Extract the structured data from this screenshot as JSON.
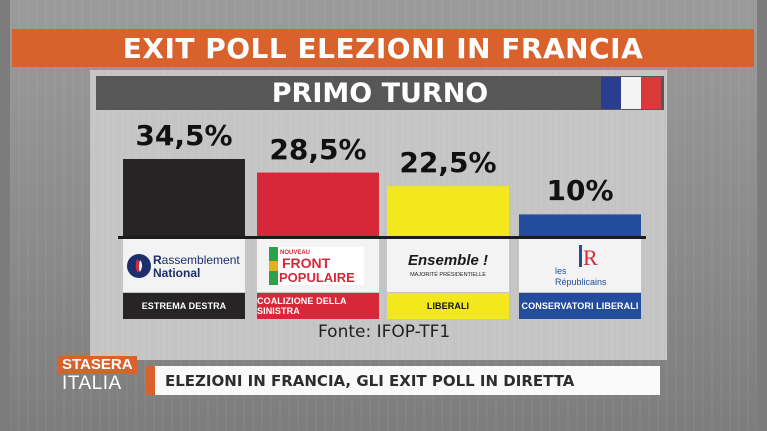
{
  "header": {
    "title": "EXIT POLL ELEZIONI IN FRANCIA",
    "subtitle": "PRIMO TURNO",
    "flag_colors": [
      "#2a3d8f",
      "#f4f4f4",
      "#d83a3a"
    ]
  },
  "chart_data": {
    "type": "bar",
    "categories": [
      "ESTREMA DESTRA",
      "COALIZIONE DELLA SINISTRA",
      "LIBERALI",
      "CONSERVATORI LIBERALI"
    ],
    "values": [
      34.5,
      28.5,
      22.5,
      10
    ],
    "value_labels": [
      "34,5%",
      "28,5%",
      "22,5%",
      "10%"
    ],
    "colors": [
      "#262424",
      "#d7283a",
      "#f2e81c",
      "#234d9c"
    ],
    "category_text_colors": [
      "#ffffff",
      "#ffffff",
      "#111111",
      "#ffffff"
    ],
    "ylim": [
      0,
      40
    ],
    "grid": false
  },
  "logos": {
    "rn": {
      "line1": "assemblement",
      "initial": "R",
      "line2": "National"
    },
    "fp": {
      "small": "NOUVEAU",
      "line1": "FRONT",
      "line2": "POPULAIRE"
    },
    "ens": {
      "line1": "Ensemble !",
      "line2": "MAJORITÉ PRÉSIDENTIELLE"
    },
    "lr": {
      "mark": "R",
      "line1": "les",
      "line2": "Républicains"
    }
  },
  "source": "Fonte: IFOP-TF1",
  "show": {
    "line1": "STASERA",
    "line2": "ITALIA"
  },
  "ticker": "ELEZIONI IN FRANCIA, GLI EXIT POLL IN DIRETTA"
}
